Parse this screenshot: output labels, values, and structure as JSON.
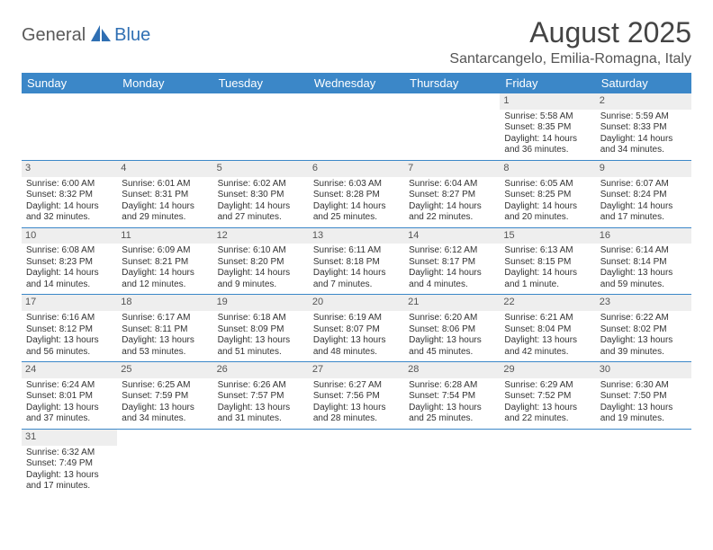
{
  "logo": {
    "part1": "General",
    "part2": "Blue"
  },
  "title": "August 2025",
  "location": "Santarcangelo, Emilia-Romagna, Italy",
  "colors": {
    "header_bg": "#3b87c8",
    "header_text": "#ffffff",
    "date_bg": "#eeeeee",
    "row_border": "#3b87c8",
    "logo_gray": "#5a5a5a",
    "logo_blue": "#2f6fb3"
  },
  "day_names": [
    "Sunday",
    "Monday",
    "Tuesday",
    "Wednesday",
    "Thursday",
    "Friday",
    "Saturday"
  ],
  "weeks": [
    [
      null,
      null,
      null,
      null,
      null,
      {
        "d": "1",
        "sr": "Sunrise: 5:58 AM",
        "ss": "Sunset: 8:35 PM",
        "dl1": "Daylight: 14 hours",
        "dl2": "and 36 minutes."
      },
      {
        "d": "2",
        "sr": "Sunrise: 5:59 AM",
        "ss": "Sunset: 8:33 PM",
        "dl1": "Daylight: 14 hours",
        "dl2": "and 34 minutes."
      }
    ],
    [
      {
        "d": "3",
        "sr": "Sunrise: 6:00 AM",
        "ss": "Sunset: 8:32 PM",
        "dl1": "Daylight: 14 hours",
        "dl2": "and 32 minutes."
      },
      {
        "d": "4",
        "sr": "Sunrise: 6:01 AM",
        "ss": "Sunset: 8:31 PM",
        "dl1": "Daylight: 14 hours",
        "dl2": "and 29 minutes."
      },
      {
        "d": "5",
        "sr": "Sunrise: 6:02 AM",
        "ss": "Sunset: 8:30 PM",
        "dl1": "Daylight: 14 hours",
        "dl2": "and 27 minutes."
      },
      {
        "d": "6",
        "sr": "Sunrise: 6:03 AM",
        "ss": "Sunset: 8:28 PM",
        "dl1": "Daylight: 14 hours",
        "dl2": "and 25 minutes."
      },
      {
        "d": "7",
        "sr": "Sunrise: 6:04 AM",
        "ss": "Sunset: 8:27 PM",
        "dl1": "Daylight: 14 hours",
        "dl2": "and 22 minutes."
      },
      {
        "d": "8",
        "sr": "Sunrise: 6:05 AM",
        "ss": "Sunset: 8:25 PM",
        "dl1": "Daylight: 14 hours",
        "dl2": "and 20 minutes."
      },
      {
        "d": "9",
        "sr": "Sunrise: 6:07 AM",
        "ss": "Sunset: 8:24 PM",
        "dl1": "Daylight: 14 hours",
        "dl2": "and 17 minutes."
      }
    ],
    [
      {
        "d": "10",
        "sr": "Sunrise: 6:08 AM",
        "ss": "Sunset: 8:23 PM",
        "dl1": "Daylight: 14 hours",
        "dl2": "and 14 minutes."
      },
      {
        "d": "11",
        "sr": "Sunrise: 6:09 AM",
        "ss": "Sunset: 8:21 PM",
        "dl1": "Daylight: 14 hours",
        "dl2": "and 12 minutes."
      },
      {
        "d": "12",
        "sr": "Sunrise: 6:10 AM",
        "ss": "Sunset: 8:20 PM",
        "dl1": "Daylight: 14 hours",
        "dl2": "and 9 minutes."
      },
      {
        "d": "13",
        "sr": "Sunrise: 6:11 AM",
        "ss": "Sunset: 8:18 PM",
        "dl1": "Daylight: 14 hours",
        "dl2": "and 7 minutes."
      },
      {
        "d": "14",
        "sr": "Sunrise: 6:12 AM",
        "ss": "Sunset: 8:17 PM",
        "dl1": "Daylight: 14 hours",
        "dl2": "and 4 minutes."
      },
      {
        "d": "15",
        "sr": "Sunrise: 6:13 AM",
        "ss": "Sunset: 8:15 PM",
        "dl1": "Daylight: 14 hours",
        "dl2": "and 1 minute."
      },
      {
        "d": "16",
        "sr": "Sunrise: 6:14 AM",
        "ss": "Sunset: 8:14 PM",
        "dl1": "Daylight: 13 hours",
        "dl2": "and 59 minutes."
      }
    ],
    [
      {
        "d": "17",
        "sr": "Sunrise: 6:16 AM",
        "ss": "Sunset: 8:12 PM",
        "dl1": "Daylight: 13 hours",
        "dl2": "and 56 minutes."
      },
      {
        "d": "18",
        "sr": "Sunrise: 6:17 AM",
        "ss": "Sunset: 8:11 PM",
        "dl1": "Daylight: 13 hours",
        "dl2": "and 53 minutes."
      },
      {
        "d": "19",
        "sr": "Sunrise: 6:18 AM",
        "ss": "Sunset: 8:09 PM",
        "dl1": "Daylight: 13 hours",
        "dl2": "and 51 minutes."
      },
      {
        "d": "20",
        "sr": "Sunrise: 6:19 AM",
        "ss": "Sunset: 8:07 PM",
        "dl1": "Daylight: 13 hours",
        "dl2": "and 48 minutes."
      },
      {
        "d": "21",
        "sr": "Sunrise: 6:20 AM",
        "ss": "Sunset: 8:06 PM",
        "dl1": "Daylight: 13 hours",
        "dl2": "and 45 minutes."
      },
      {
        "d": "22",
        "sr": "Sunrise: 6:21 AM",
        "ss": "Sunset: 8:04 PM",
        "dl1": "Daylight: 13 hours",
        "dl2": "and 42 minutes."
      },
      {
        "d": "23",
        "sr": "Sunrise: 6:22 AM",
        "ss": "Sunset: 8:02 PM",
        "dl1": "Daylight: 13 hours",
        "dl2": "and 39 minutes."
      }
    ],
    [
      {
        "d": "24",
        "sr": "Sunrise: 6:24 AM",
        "ss": "Sunset: 8:01 PM",
        "dl1": "Daylight: 13 hours",
        "dl2": "and 37 minutes."
      },
      {
        "d": "25",
        "sr": "Sunrise: 6:25 AM",
        "ss": "Sunset: 7:59 PM",
        "dl1": "Daylight: 13 hours",
        "dl2": "and 34 minutes."
      },
      {
        "d": "26",
        "sr": "Sunrise: 6:26 AM",
        "ss": "Sunset: 7:57 PM",
        "dl1": "Daylight: 13 hours",
        "dl2": "and 31 minutes."
      },
      {
        "d": "27",
        "sr": "Sunrise: 6:27 AM",
        "ss": "Sunset: 7:56 PM",
        "dl1": "Daylight: 13 hours",
        "dl2": "and 28 minutes."
      },
      {
        "d": "28",
        "sr": "Sunrise: 6:28 AM",
        "ss": "Sunset: 7:54 PM",
        "dl1": "Daylight: 13 hours",
        "dl2": "and 25 minutes."
      },
      {
        "d": "29",
        "sr": "Sunrise: 6:29 AM",
        "ss": "Sunset: 7:52 PM",
        "dl1": "Daylight: 13 hours",
        "dl2": "and 22 minutes."
      },
      {
        "d": "30",
        "sr": "Sunrise: 6:30 AM",
        "ss": "Sunset: 7:50 PM",
        "dl1": "Daylight: 13 hours",
        "dl2": "and 19 minutes."
      }
    ],
    [
      {
        "d": "31",
        "sr": "Sunrise: 6:32 AM",
        "ss": "Sunset: 7:49 PM",
        "dl1": "Daylight: 13 hours",
        "dl2": "and 17 minutes."
      },
      null,
      null,
      null,
      null,
      null,
      null
    ]
  ]
}
